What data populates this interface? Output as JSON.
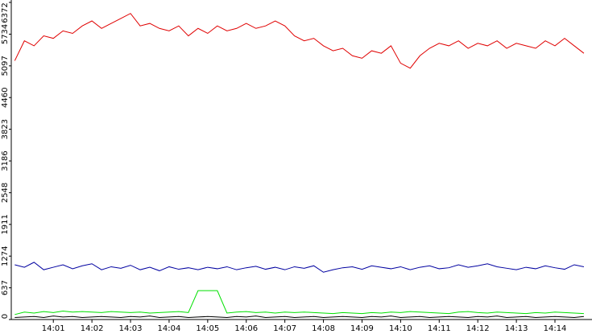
{
  "chart_data": {
    "type": "line",
    "x": [
      0,
      0.25,
      0.5,
      0.75,
      1,
      1.25,
      1.5,
      1.75,
      2,
      2.25,
      2.5,
      2.75,
      3,
      3.25,
      3.5,
      3.75,
      4,
      4.25,
      4.5,
      4.75,
      5,
      5.25,
      5.5,
      5.75,
      6,
      6.25,
      6.5,
      6.75,
      7,
      7.25,
      7.5,
      7.75,
      8,
      8.25,
      8.5,
      8.75,
      9,
      9.25,
      9.5,
      9.75,
      10,
      10.25,
      10.5,
      10.75,
      11,
      11.25,
      11.5,
      11.75,
      12,
      12.25,
      12.5,
      12.75,
      13,
      13.25,
      13.5,
      13.75,
      14,
      14.25,
      14.5,
      14.75
    ],
    "xlim": [
      -0.09,
      14.96
    ],
    "xticks": [
      {
        "value": 1,
        "label": "14:01"
      },
      {
        "value": 2,
        "label": "14:02"
      },
      {
        "value": 3,
        "label": "14:03"
      },
      {
        "value": 4,
        "label": "14:04"
      },
      {
        "value": 5,
        "label": "14:05"
      },
      {
        "value": 6,
        "label": "14:06"
      },
      {
        "value": 7,
        "label": "14:07"
      },
      {
        "value": 8,
        "label": "14:08"
      },
      {
        "value": 9,
        "label": "14:09"
      },
      {
        "value": 10,
        "label": "14:10"
      },
      {
        "value": 11,
        "label": "14:11"
      },
      {
        "value": 12,
        "label": "14:12"
      },
      {
        "value": 13,
        "label": "14:13"
      },
      {
        "value": 14,
        "label": "14:14"
      }
    ],
    "ylim": [
      0,
      6372
    ],
    "yticks": [
      0,
      637,
      1274,
      1911,
      2548,
      3186,
      3823,
      4460,
      5097,
      5734,
      6372
    ],
    "series": [
      {
        "color": "#e00000",
        "values": [
          5200,
          5600,
          5500,
          5700,
          5650,
          5800,
          5750,
          5900,
          6000,
          5850,
          5950,
          6050,
          6150,
          5900,
          5950,
          5850,
          5800,
          5900,
          5700,
          5850,
          5750,
          5900,
          5800,
          5850,
          5950,
          5850,
          5900,
          6000,
          5900,
          5700,
          5600,
          5650,
          5500,
          5400,
          5450,
          5300,
          5250,
          5400,
          5350,
          5500,
          5150,
          5050,
          5300,
          5450,
          5550,
          5500,
          5600,
          5450,
          5550,
          5500,
          5600,
          5450,
          5550,
          5500,
          5450,
          5600,
          5500,
          5650,
          5500,
          5350
        ]
      },
      {
        "color": "#0000a0",
        "values": [
          1100,
          1050,
          1150,
          1000,
          1050,
          1100,
          1020,
          1080,
          1120,
          1000,
          1060,
          1030,
          1090,
          1000,
          1050,
          980,
          1060,
          1010,
          1040,
          1000,
          1050,
          1020,
          1060,
          1000,
          1040,
          1070,
          1010,
          1050,
          1000,
          1060,
          1030,
          1080,
          950,
          1000,
          1040,
          1060,
          1010,
          1080,
          1050,
          1020,
          1060,
          1000,
          1050,
          1080,
          1020,
          1040,
          1100,
          1050,
          1080,
          1120,
          1060,
          1030,
          1000,
          1050,
          1020,
          1080,
          1040,
          1010,
          1100,
          1060
        ]
      },
      {
        "color": "#00e000",
        "values": [
          100,
          150,
          130,
          160,
          140,
          170,
          150,
          160,
          150,
          140,
          160,
          150,
          140,
          150,
          130,
          140,
          150,
          160,
          140,
          580,
          580,
          580,
          130,
          150,
          160,
          140,
          150,
          130,
          150,
          140,
          150,
          140,
          130,
          120,
          140,
          130,
          120,
          140,
          130,
          150,
          140,
          160,
          150,
          140,
          130,
          120,
          150,
          160,
          140,
          130,
          150,
          140,
          130,
          120,
          140,
          130,
          150,
          140,
          130,
          120
        ]
      },
      {
        "color": "#000000",
        "values": [
          40,
          50,
          60,
          40,
          70,
          50,
          60,
          40,
          50,
          60,
          50,
          40,
          60,
          50,
          70,
          40,
          50,
          60,
          40,
          50,
          60,
          50,
          40,
          60,
          50,
          70,
          40,
          50,
          60,
          40,
          50,
          60,
          40,
          50,
          60,
          50,
          40,
          60,
          50,
          70,
          40,
          50,
          60,
          40,
          50,
          60,
          50,
          40,
          60,
          50,
          70,
          40,
          50,
          60,
          40,
          50,
          60,
          50,
          40,
          60
        ]
      }
    ]
  }
}
